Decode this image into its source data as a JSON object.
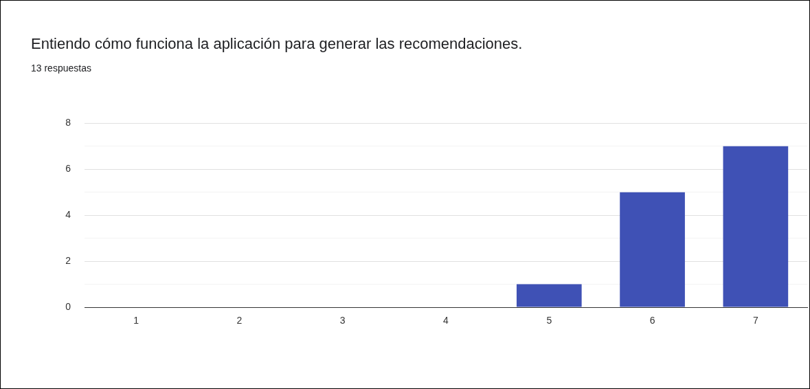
{
  "chart_data": {
    "type": "bar",
    "title": "Entiendo cómo funciona la aplicación para generar las recomendaciones.",
    "subtitle": "13 respuestas",
    "categories": [
      "1",
      "2",
      "3",
      "4",
      "5",
      "6",
      "7"
    ],
    "series": [
      {
        "color": "#3f51b5",
        "values": [
          0,
          0,
          0,
          0,
          1,
          5,
          7
        ]
      }
    ],
    "ylim": [
      0,
      8
    ],
    "yticks": [
      0,
      {
        "value": 1,
        "label": null
      },
      2,
      {
        "value": 3,
        "label": null
      },
      4,
      {
        "value": 5,
        "label": null
      },
      6,
      {
        "value": 7,
        "label": null
      },
      8
    ],
    "grid": "y"
  }
}
